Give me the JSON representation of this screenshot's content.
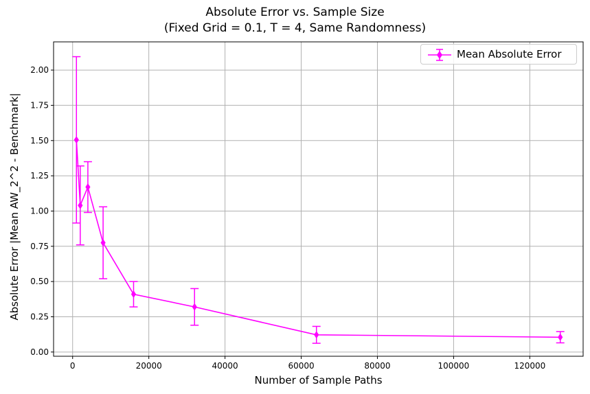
{
  "chart_data": {
    "type": "line",
    "title": "Absolute Error vs. Sample Size",
    "subtitle": "(Fixed Grid = 0.1, T = 4, Same Randomness)",
    "xlabel": "Number of Sample Paths",
    "ylabel": "Absolute Error |Mean AW_2^2 - Benchmark|",
    "xlim": [
      -5000,
      134000
    ],
    "ylim": [
      -0.03,
      2.2
    ],
    "xticks": [
      0,
      20000,
      40000,
      60000,
      80000,
      100000,
      120000
    ],
    "yticks": [
      0.0,
      0.25,
      0.5,
      0.75,
      1.0,
      1.25,
      1.5,
      1.75,
      2.0
    ],
    "xtick_labels": [
      "0",
      "20000",
      "40000",
      "60000",
      "80000",
      "100000",
      "120000"
    ],
    "ytick_labels": [
      "0.00",
      "0.25",
      "0.50",
      "0.75",
      "1.00",
      "1.25",
      "1.50",
      "1.75",
      "2.00"
    ],
    "grid": true,
    "legend_position": "top-right",
    "series": [
      {
        "name": "Mean Absolute Error",
        "color": "#ff00ff",
        "marker": "diamond",
        "x": [
          1000,
          2000,
          4000,
          8000,
          16000,
          32000,
          64000,
          128000
        ],
        "y": [
          1.505,
          1.04,
          1.17,
          0.775,
          0.41,
          0.32,
          0.122,
          0.105
        ],
        "yerr": [
          0.59,
          0.28,
          0.18,
          0.255,
          0.09,
          0.13,
          0.06,
          0.04
        ]
      }
    ]
  }
}
